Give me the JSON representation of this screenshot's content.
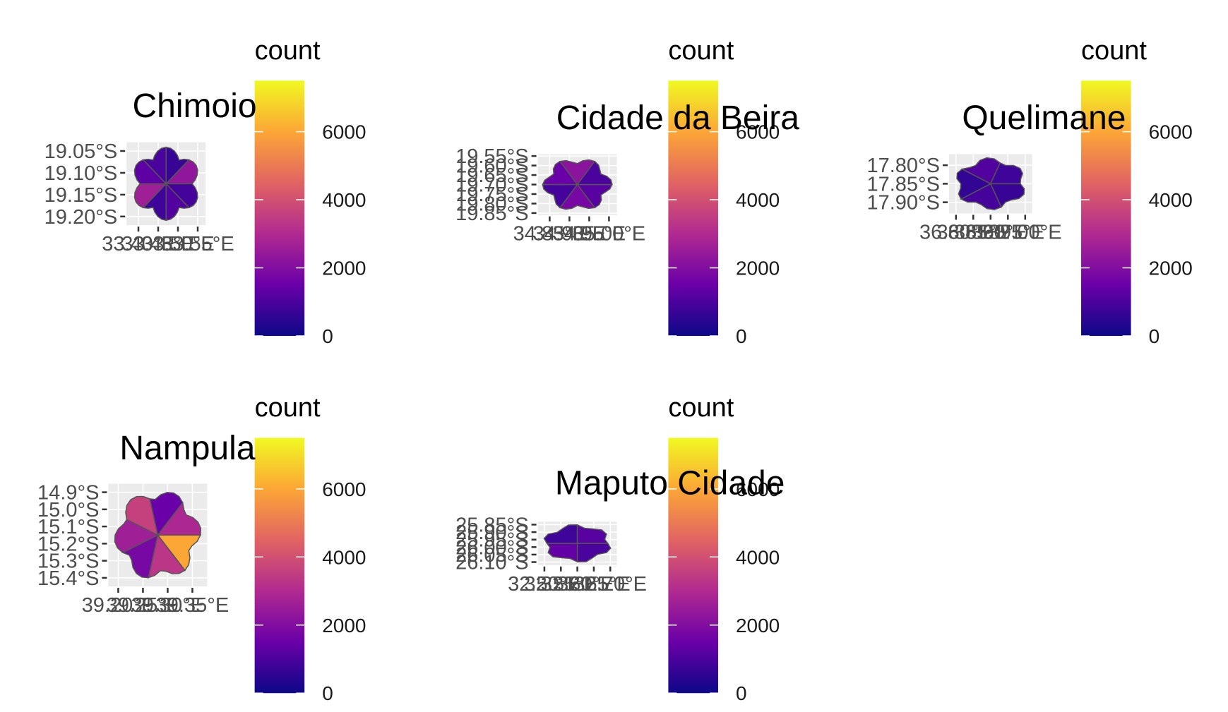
{
  "chart_data": [
    {
      "type": "map",
      "title": "Chimoio",
      "legend_title": "count",
      "clim": [
        0,
        7500
      ],
      "cticks": [
        0,
        2000,
        4000,
        6000
      ],
      "colors": [
        "#0d0887",
        "#6a00a8",
        "#b12a90",
        "#e16462",
        "#fca636",
        "#f0f921"
      ],
      "xlim": [
        33.37,
        33.57
      ],
      "ylim": [
        -19.22,
        -19.03
      ],
      "xticks": [
        {
          "value": 33.4,
          "label": "33.40°E"
        },
        {
          "value": 33.45,
          "label": "33.45°E"
        },
        {
          "value": 33.5,
          "label": "33.50°E"
        },
        {
          "value": 33.55,
          "label": "33.55°E"
        }
      ],
      "yticks": [
        {
          "value": -19.05,
          "label": "19.05°S"
        },
        {
          "value": -19.1,
          "label": "19.10°S"
        },
        {
          "value": -19.15,
          "label": "19.15°S"
        },
        {
          "value": -19.2,
          "label": "19.20°S"
        }
      ],
      "values": [
        900,
        1100,
        800,
        2600,
        1300,
        1000,
        700,
        2300
      ]
    },
    {
      "type": "map",
      "title": "Cidade da Beira",
      "legend_title": "count",
      "clim": [
        0,
        7500
      ],
      "cticks": [
        0,
        2000,
        4000,
        6000
      ],
      "colors": [
        "#0d0887",
        "#6a00a8",
        "#b12a90",
        "#e16462",
        "#fca636",
        "#f0f921"
      ],
      "xlim": [
        34.82,
        35.02
      ],
      "ylim": [
        -19.86,
        -19.54
      ],
      "xticks": [
        {
          "value": 34.85,
          "label": "34.85°E"
        },
        {
          "value": 34.9,
          "label": "34.90°E"
        },
        {
          "value": 34.95,
          "label": "34.95°E"
        },
        {
          "value": 35.0,
          "label": "35.00°E"
        }
      ],
      "yticks": [
        {
          "value": -19.55,
          "label": "19.55°S"
        },
        {
          "value": -19.6,
          "label": "19.60°S"
        },
        {
          "value": -19.65,
          "label": "19.65°S"
        },
        {
          "value": -19.7,
          "label": "19.70°S"
        },
        {
          "value": -19.75,
          "label": "19.75°S"
        },
        {
          "value": -19.8,
          "label": "19.80°S"
        },
        {
          "value": -19.85,
          "label": "19.85°S"
        }
      ],
      "values": [
        1200,
        1800,
        900,
        1500,
        2200,
        1000
      ]
    },
    {
      "type": "map",
      "title": "Quelimane",
      "legend_title": "count",
      "clim": [
        0,
        7500
      ],
      "cticks": [
        0,
        2000,
        4000,
        6000
      ],
      "colors": [
        "#0d0887",
        "#6a00a8",
        "#b12a90",
        "#e16462",
        "#fca636",
        "#f0f921"
      ],
      "xlim": [
        36.78,
        37.02
      ],
      "ylim": [
        -17.93,
        -17.77
      ],
      "xticks": [
        {
          "value": 36.8,
          "label": "36.80°E"
        },
        {
          "value": 36.85,
          "label": "36.85°E"
        },
        {
          "value": 36.9,
          "label": "36.90°E"
        },
        {
          "value": 36.95,
          "label": "36.95°E"
        },
        {
          "value": 37.0,
          "label": "37.00°E"
        }
      ],
      "yticks": [
        {
          "value": -17.8,
          "label": "17.80°S"
        },
        {
          "value": -17.85,
          "label": "17.85°S"
        },
        {
          "value": -17.9,
          "label": "17.90°S"
        }
      ],
      "values": [
        700,
        900,
        600,
        1100,
        800
      ]
    },
    {
      "type": "map",
      "title": "Nampula",
      "legend_title": "count",
      "clim": [
        0,
        7500
      ],
      "cticks": [
        0,
        2000,
        4000,
        6000
      ],
      "colors": [
        "#0d0887",
        "#6a00a8",
        "#b12a90",
        "#e16462",
        "#fca636",
        "#f0f921"
      ],
      "xlim": [
        39.18,
        39.38
      ],
      "ylim": [
        -15.45,
        -14.85
      ],
      "xticks": [
        {
          "value": 39.2,
          "label": "39.20°E"
        },
        {
          "value": 39.25,
          "label": "39.25°E"
        },
        {
          "value": 39.3,
          "label": "39.30°E"
        },
        {
          "value": 39.35,
          "label": "39.35°E"
        }
      ],
      "yticks": [
        {
          "value": -14.9,
          "label": "14.9°S"
        },
        {
          "value": -15.0,
          "label": "15.0°S"
        },
        {
          "value": -15.1,
          "label": "15.1°S"
        },
        {
          "value": -15.2,
          "label": "15.2°S"
        },
        {
          "value": -15.3,
          "label": "15.3°S"
        },
        {
          "value": -15.4,
          "label": "15.4°S"
        }
      ],
      "values": [
        6000,
        3300,
        1800,
        2600,
        3600,
        1500,
        2900
      ]
    },
    {
      "type": "map",
      "title": "Maputo Cidade",
      "legend_title": "count",
      "clim": [
        0,
        7500
      ],
      "cticks": [
        0,
        2000,
        4000,
        6000
      ],
      "colors": [
        "#0d0887",
        "#6a00a8",
        "#b12a90",
        "#e16462",
        "#fca636",
        "#f0f921"
      ],
      "xlim": [
        32.48,
        32.72
      ],
      "ylim": [
        -26.12,
        -25.83
      ],
      "xticks": [
        {
          "value": 32.5,
          "label": "32.50°E"
        },
        {
          "value": 32.55,
          "label": "32.55°E"
        },
        {
          "value": 32.6,
          "label": "32.60°E"
        },
        {
          "value": 32.65,
          "label": "32.65°E"
        },
        {
          "value": 32.7,
          "label": "32.70°E"
        }
      ],
      "yticks": [
        {
          "value": -25.85,
          "label": "25.85°S"
        },
        {
          "value": -25.9,
          "label": "25.90°S"
        },
        {
          "value": -25.95,
          "label": "25.95°S"
        },
        {
          "value": -26.0,
          "label": "26.00°S"
        },
        {
          "value": -26.05,
          "label": "26.05°S"
        },
        {
          "value": -26.1,
          "label": "26.10°S"
        }
      ],
      "values": [
        1000,
        1400,
        800,
        1200
      ]
    }
  ]
}
